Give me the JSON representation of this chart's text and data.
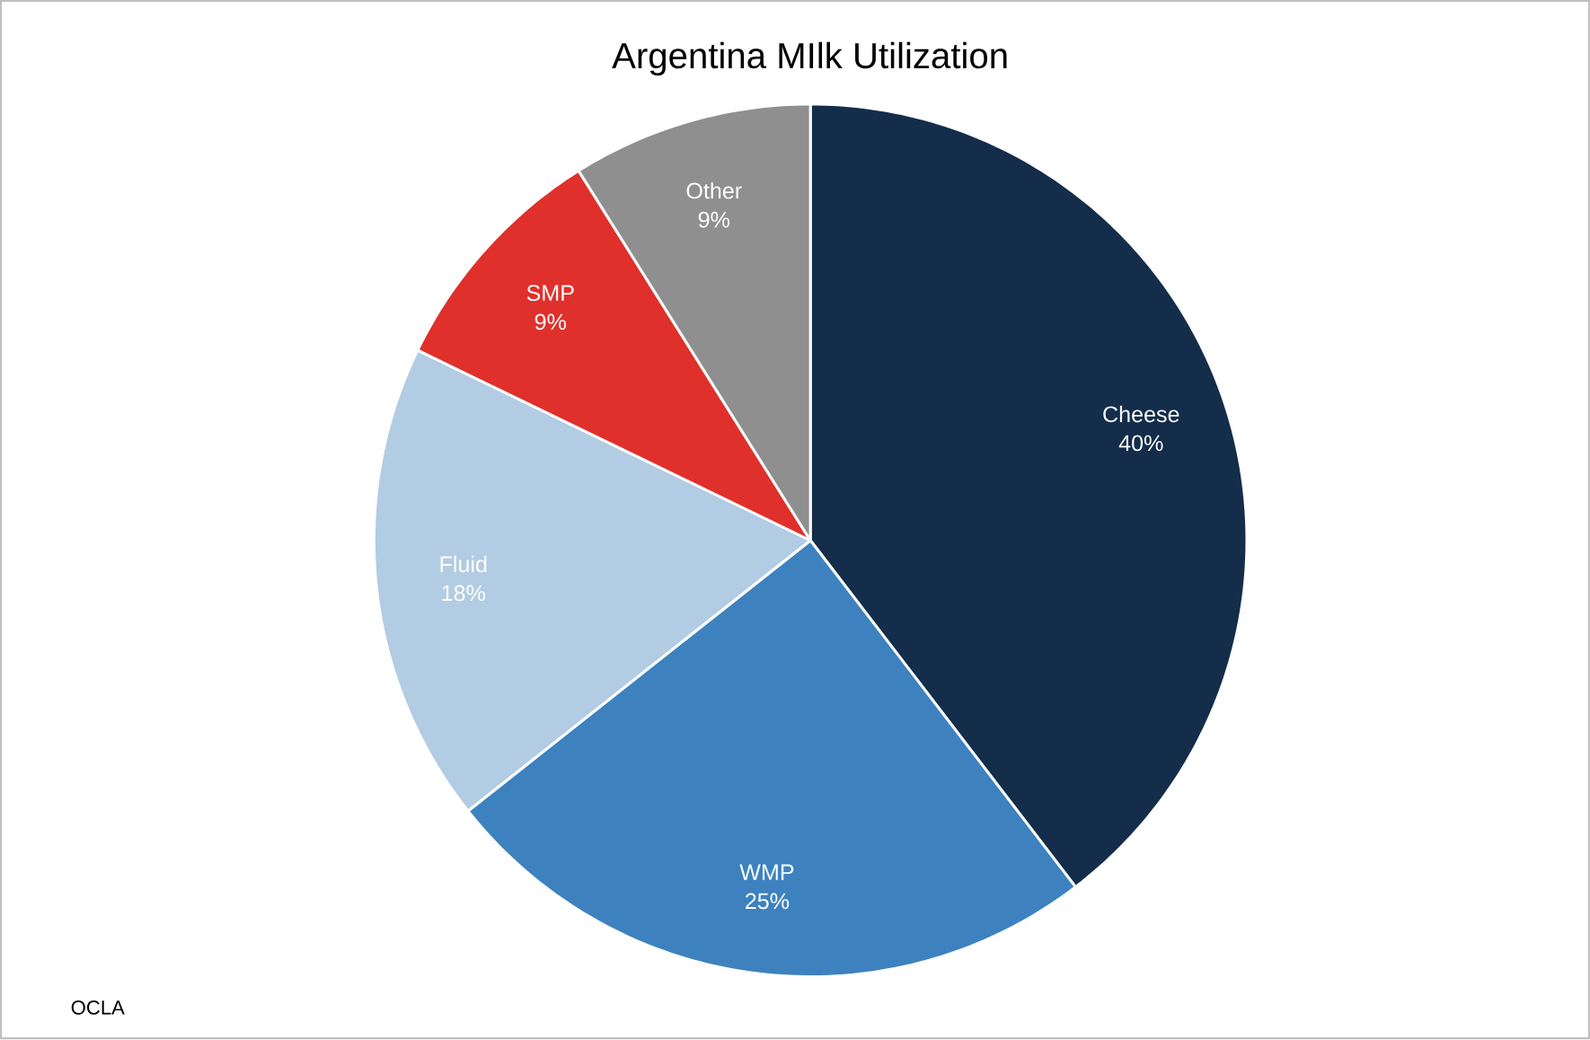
{
  "chart_data": {
    "type": "pie",
    "title": "Argentina MIlk Utilization",
    "categories": [
      "Cheese",
      "WMP",
      "Fluid",
      "SMP",
      "Other"
    ],
    "values": [
      40,
      25,
      18,
      9,
      9
    ],
    "colors": [
      "#132d4a",
      "#3d82bf",
      "#b2cce3",
      "#e0302b",
      "#8f8f8f"
    ],
    "value_labels": [
      "40%",
      "25%",
      "18%",
      "9%",
      "9%"
    ],
    "annotations": [
      "OCLA"
    ]
  }
}
